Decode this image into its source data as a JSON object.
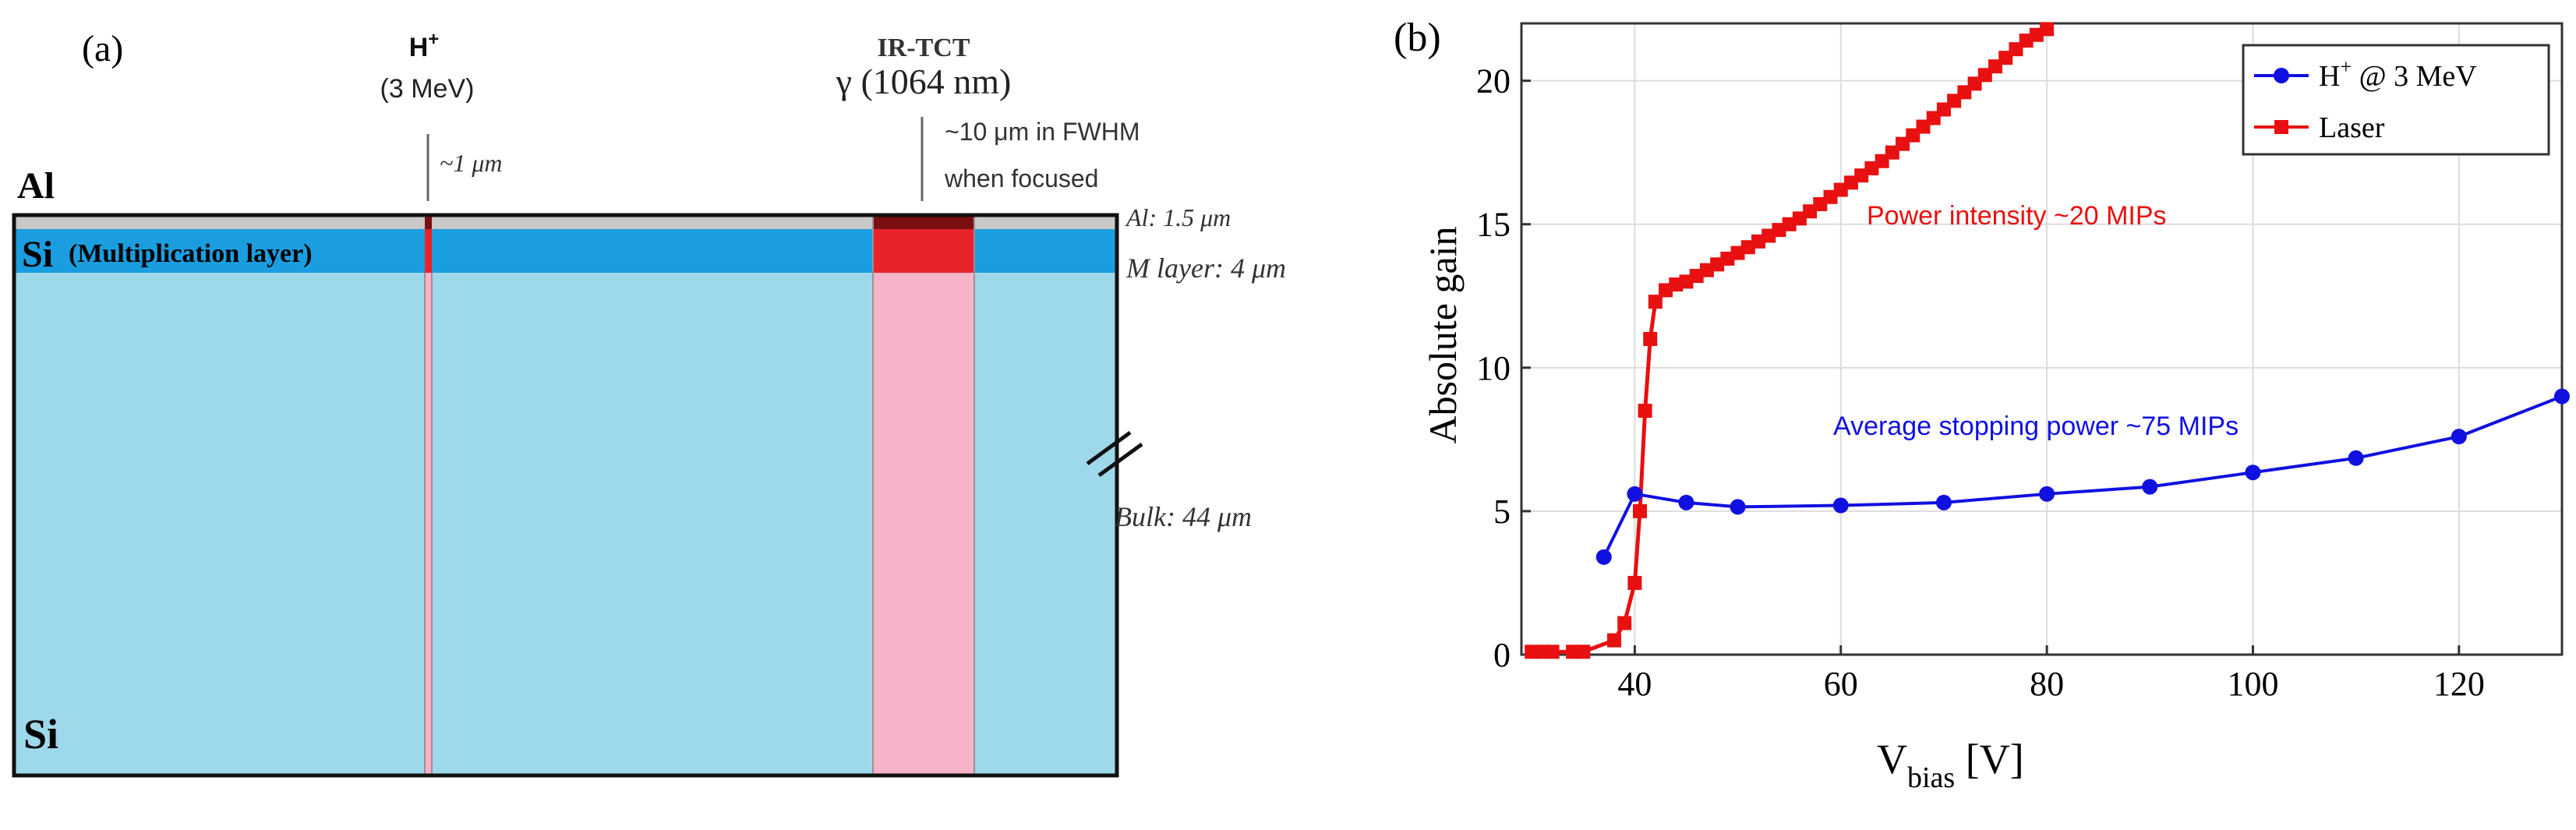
{
  "panel_a": {
    "label": "(a)",
    "proton": {
      "name": "H",
      "charge": "+",
      "energy": "(3 MeV)",
      "spot": "~1 μm"
    },
    "laser": {
      "name": "IR-TCT",
      "wavelength": "γ (1064 nm)",
      "spot_line1": "~10 μm in FWHM",
      "spot_line2": "when focused"
    },
    "layers": {
      "al_label": "Al",
      "mult_si": "Si",
      "mult_label": "(Multiplication layer)",
      "bulk_label": "Si",
      "al_thickness": "Al: 1.5 μm",
      "m_thickness": "M layer: 4 μm",
      "bulk_thickness": "Bulk: 44 μm"
    },
    "colors": {
      "al": "#c8c8c8",
      "mult": "#1a9ee0",
      "bulk": "#9dd9ea",
      "laser_top": "#e8222b",
      "laser_bulk": "#f7b3c8",
      "beam_dark": "#7a0f12"
    }
  },
  "chart_data": {
    "type": "line",
    "label": "(b)",
    "xlabel": "V",
    "xlabel_sub": "bias",
    "xlabel_unit": " [V]",
    "ylabel": "Absolute gain",
    "xlim": [
      29,
      130
    ],
    "ylim": [
      0,
      22
    ],
    "xticks": [
      40,
      60,
      80,
      100,
      120
    ],
    "yticks": [
      0,
      5,
      10,
      15,
      20
    ],
    "grid": true,
    "legend": "top-right",
    "series": [
      {
        "name": "H+ @ 3 MeV",
        "legend_label": "H",
        "legend_sup": "+",
        "legend_rest": " @ 3 MeV",
        "color": "#1010e0",
        "marker": "circle",
        "x": [
          37,
          40,
          45,
          50,
          60,
          70,
          80,
          90,
          100,
          110,
          120,
          130
        ],
        "y": [
          3.4,
          5.6,
          5.3,
          5.15,
          5.2,
          5.3,
          5.6,
          5.85,
          6.35,
          6.85,
          7.6,
          9.0
        ]
      },
      {
        "name": "Laser",
        "legend_label": "Laser",
        "color": "#e81010",
        "marker": "square",
        "x": [
          30,
          31,
          32,
          34,
          35,
          38,
          39,
          40,
          40.5,
          41,
          41.5,
          42,
          43,
          44,
          45,
          46,
          47,
          48,
          49,
          50,
          51,
          52,
          53,
          54,
          55,
          56,
          57,
          58,
          59,
          60,
          61,
          62,
          63,
          64,
          65,
          66,
          67,
          68,
          69,
          70,
          71,
          72,
          73,
          74,
          75,
          76,
          77,
          78,
          79,
          80
        ],
        "y": [
          0.1,
          0.1,
          0.1,
          0.1,
          0.1,
          0.5,
          1.1,
          2.5,
          5.0,
          8.5,
          11.0,
          12.3,
          12.7,
          12.9,
          13.0,
          13.2,
          13.4,
          13.6,
          13.8,
          14.0,
          14.2,
          14.4,
          14.6,
          14.8,
          15.0,
          15.2,
          15.45,
          15.7,
          15.95,
          16.2,
          16.45,
          16.7,
          16.95,
          17.2,
          17.5,
          17.8,
          18.1,
          18.4,
          18.7,
          19.0,
          19.3,
          19.6,
          19.9,
          20.2,
          20.5,
          20.8,
          21.1,
          21.4,
          21.6,
          21.8
        ]
      }
    ],
    "annotations": [
      {
        "text": "Power intensity ~20 MIPs",
        "color": "#e81010"
      },
      {
        "text": "Average stopping power ~75 MIPs",
        "color": "#1010e0"
      }
    ]
  }
}
